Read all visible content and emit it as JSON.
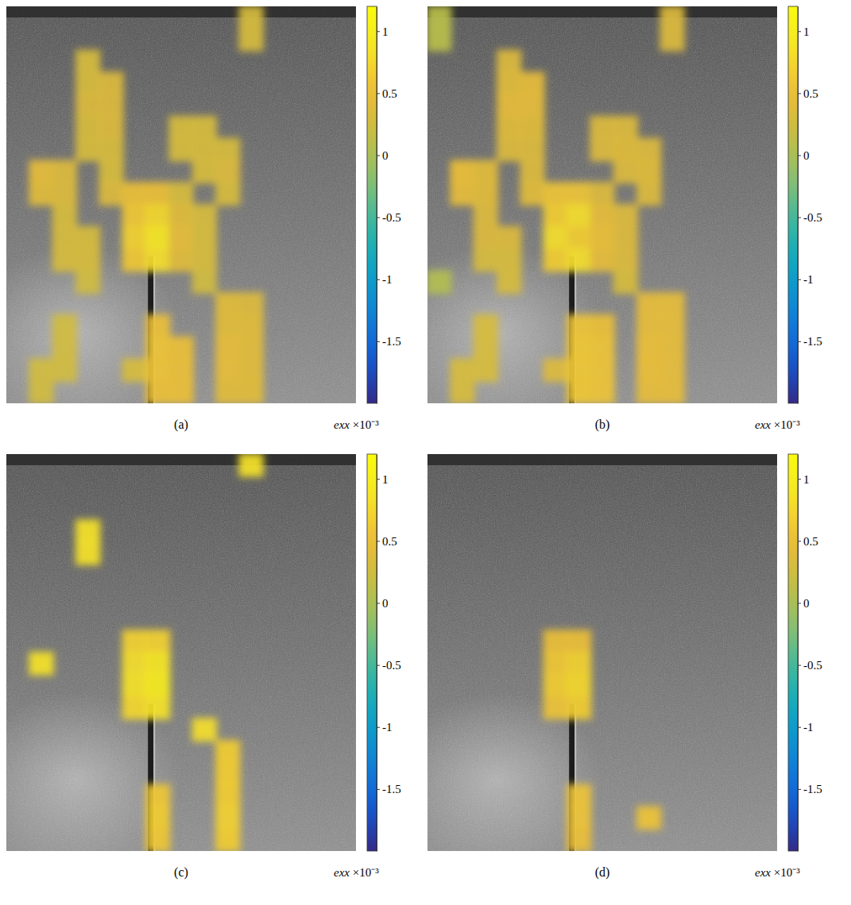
{
  "chart_data": [
    {
      "type": "heatmap",
      "label": "(a)",
      "colorbar_label": "exx ×10⁻³",
      "color_range": [
        -2,
        1.2
      ],
      "color_ticks": [
        1,
        0.5,
        0,
        -0.5,
        -1,
        -1.5
      ],
      "cells": [
        [
          null,
          null,
          null,
          null,
          null,
          null,
          null,
          null,
          null,
          null,
          0.3,
          null,
          null,
          null,
          null
        ],
        [
          null,
          null,
          null,
          null,
          null,
          null,
          null,
          null,
          null,
          null,
          0.3,
          null,
          null,
          null,
          null
        ],
        [
          null,
          null,
          null,
          0.3,
          null,
          null,
          null,
          null,
          null,
          null,
          null,
          null,
          null,
          null,
          null
        ],
        [
          null,
          null,
          null,
          0.3,
          0.35,
          null,
          null,
          null,
          null,
          null,
          null,
          null,
          null,
          null,
          null
        ],
        [
          null,
          null,
          null,
          0.35,
          0.35,
          null,
          null,
          null,
          null,
          null,
          null,
          null,
          null,
          null,
          null
        ],
        [
          null,
          null,
          null,
          0.3,
          0.35,
          null,
          null,
          0.3,
          0.3,
          null,
          null,
          null,
          null,
          null,
          null
        ],
        [
          null,
          null,
          null,
          0.3,
          0.3,
          null,
          null,
          0.3,
          0.3,
          0.3,
          null,
          null,
          null,
          null,
          null
        ],
        [
          null,
          0.45,
          0.35,
          null,
          0.3,
          null,
          null,
          null,
          0.3,
          0.35,
          null,
          null,
          null,
          null,
          null
        ],
        [
          null,
          0.4,
          0.35,
          null,
          0.35,
          0.5,
          0.5,
          0.3,
          null,
          0.3,
          null,
          null,
          null,
          null,
          null
        ],
        [
          null,
          null,
          0.3,
          null,
          null,
          0.6,
          0.75,
          0.4,
          0.3,
          null,
          null,
          null,
          null,
          null,
          null
        ],
        [
          null,
          null,
          0.3,
          0.3,
          null,
          0.7,
          0.9,
          0.45,
          0.3,
          null,
          null,
          null,
          null,
          null,
          null
        ],
        [
          null,
          null,
          0.3,
          0.3,
          null,
          0.6,
          0.8,
          0.4,
          0.3,
          null,
          null,
          null,
          null,
          null,
          null
        ],
        [
          null,
          null,
          null,
          0.25,
          null,
          null,
          null,
          null,
          0.25,
          null,
          null,
          null,
          null,
          null,
          null
        ],
        [
          null,
          null,
          null,
          null,
          null,
          null,
          null,
          null,
          null,
          0.4,
          0.35,
          null,
          null,
          null,
          null
        ],
        [
          null,
          null,
          0.25,
          null,
          null,
          null,
          0.5,
          null,
          null,
          0.4,
          0.4,
          null,
          null,
          null,
          null
        ],
        [
          null,
          null,
          0.25,
          null,
          null,
          null,
          0.55,
          0.5,
          null,
          0.45,
          0.4,
          null,
          null,
          null,
          null
        ],
        [
          null,
          0.25,
          0.25,
          null,
          null,
          0.3,
          0.55,
          0.5,
          null,
          0.45,
          0.4,
          null,
          null,
          null,
          null
        ],
        [
          null,
          0.25,
          null,
          null,
          null,
          null,
          0.5,
          0.5,
          null,
          0.4,
          0.4,
          null,
          null,
          null,
          null
        ]
      ]
    },
    {
      "type": "heatmap",
      "label": "(b)",
      "colorbar_label": "exx ×10⁻³",
      "color_range": [
        -2,
        1.2
      ],
      "color_ticks": [
        1,
        0.5,
        0,
        -0.5,
        -1,
        -1.5
      ],
      "cells": [
        [
          0.1,
          null,
          null,
          null,
          null,
          null,
          null,
          null,
          null,
          null,
          0.35,
          null,
          null,
          null,
          null
        ],
        [
          0.1,
          null,
          null,
          null,
          null,
          null,
          null,
          null,
          null,
          null,
          0.35,
          null,
          null,
          null,
          null
        ],
        [
          null,
          null,
          null,
          0.35,
          null,
          null,
          null,
          null,
          null,
          null,
          null,
          null,
          null,
          null,
          null
        ],
        [
          null,
          null,
          null,
          0.4,
          0.45,
          null,
          null,
          null,
          null,
          null,
          null,
          null,
          null,
          null,
          null
        ],
        [
          null,
          null,
          null,
          0.45,
          0.45,
          null,
          null,
          null,
          null,
          null,
          null,
          null,
          null,
          null,
          null
        ],
        [
          null,
          null,
          null,
          0.4,
          0.4,
          null,
          null,
          0.35,
          0.35,
          null,
          null,
          null,
          null,
          null,
          null
        ],
        [
          null,
          null,
          null,
          0.35,
          0.35,
          null,
          null,
          0.35,
          0.4,
          0.35,
          null,
          null,
          null,
          null,
          null
        ],
        [
          null,
          0.5,
          0.4,
          null,
          0.35,
          null,
          null,
          null,
          0.35,
          0.4,
          null,
          null,
          null,
          null,
          null
        ],
        [
          null,
          0.45,
          0.4,
          null,
          0.4,
          0.55,
          0.55,
          0.35,
          null,
          0.35,
          null,
          null,
          null,
          null,
          null
        ],
        [
          null,
          null,
          0.35,
          null,
          null,
          0.65,
          0.8,
          0.45,
          0.35,
          null,
          null,
          null,
          null,
          null,
          null
        ],
        [
          null,
          null,
          0.35,
          0.35,
          null,
          0.8,
          0.65,
          0.5,
          0.35,
          null,
          null,
          null,
          null,
          null,
          null
        ],
        [
          null,
          null,
          0.3,
          0.3,
          null,
          0.65,
          0.8,
          0.45,
          0.35,
          null,
          null,
          null,
          null,
          null,
          null
        ],
        [
          0.05,
          null,
          null,
          0.3,
          null,
          null,
          null,
          null,
          0.3,
          null,
          null,
          null,
          null,
          null,
          null
        ],
        [
          null,
          null,
          null,
          null,
          null,
          null,
          null,
          null,
          null,
          0.45,
          0.45,
          null,
          null,
          null,
          null
        ],
        [
          null,
          null,
          0.3,
          null,
          null,
          null,
          0.55,
          0.5,
          null,
          0.45,
          0.45,
          null,
          null,
          null,
          null
        ],
        [
          null,
          null,
          0.3,
          null,
          null,
          null,
          0.6,
          0.55,
          null,
          0.5,
          0.45,
          null,
          null,
          null,
          null
        ],
        [
          null,
          0.3,
          0.3,
          null,
          null,
          0.35,
          0.6,
          0.55,
          null,
          0.5,
          0.45,
          null,
          null,
          null,
          null
        ],
        [
          null,
          0.3,
          null,
          null,
          null,
          null,
          0.6,
          0.55,
          null,
          0.45,
          0.45,
          null,
          null,
          null,
          null
        ]
      ]
    },
    {
      "type": "heatmap",
      "label": "(c)",
      "colorbar_label": "exx ×10⁻³",
      "color_range": [
        -2,
        1.2
      ],
      "color_ticks": [
        1,
        0.5,
        0,
        -0.5,
        -1,
        -1.5
      ],
      "cells": [
        [
          null,
          null,
          null,
          null,
          null,
          null,
          null,
          null,
          null,
          null,
          0.85,
          null,
          null,
          null,
          null
        ],
        [
          null,
          null,
          null,
          null,
          null,
          null,
          null,
          null,
          null,
          null,
          null,
          null,
          null,
          null,
          null
        ],
        [
          null,
          null,
          null,
          null,
          null,
          null,
          null,
          null,
          null,
          null,
          null,
          null,
          null,
          null,
          null
        ],
        [
          null,
          null,
          null,
          0.85,
          null,
          null,
          null,
          null,
          null,
          null,
          null,
          null,
          null,
          null,
          null
        ],
        [
          null,
          null,
          null,
          0.85,
          null,
          null,
          null,
          null,
          null,
          null,
          null,
          null,
          null,
          null,
          null
        ],
        [
          null,
          null,
          null,
          null,
          null,
          null,
          null,
          null,
          null,
          null,
          null,
          null,
          null,
          null,
          null
        ],
        [
          null,
          null,
          null,
          null,
          null,
          null,
          null,
          null,
          null,
          null,
          null,
          null,
          null,
          null,
          null
        ],
        [
          null,
          null,
          null,
          null,
          null,
          null,
          null,
          null,
          null,
          null,
          null,
          null,
          null,
          null,
          null
        ],
        [
          null,
          null,
          null,
          null,
          null,
          0.7,
          0.7,
          null,
          null,
          null,
          null,
          null,
          null,
          null,
          null
        ],
        [
          null,
          0.85,
          null,
          null,
          null,
          0.8,
          0.9,
          null,
          null,
          null,
          null,
          null,
          null,
          null,
          null
        ],
        [
          null,
          null,
          null,
          null,
          null,
          0.85,
          0.95,
          null,
          null,
          null,
          null,
          null,
          null,
          null,
          null
        ],
        [
          null,
          null,
          null,
          null,
          null,
          0.75,
          0.85,
          null,
          null,
          null,
          null,
          null,
          null,
          null,
          null
        ],
        [
          null,
          null,
          null,
          null,
          null,
          null,
          null,
          null,
          0.8,
          null,
          null,
          null,
          null,
          null,
          null
        ],
        [
          null,
          null,
          null,
          null,
          null,
          null,
          null,
          null,
          null,
          0.65,
          null,
          null,
          null,
          null,
          null
        ],
        [
          null,
          null,
          null,
          null,
          null,
          null,
          null,
          null,
          null,
          0.65,
          null,
          null,
          null,
          null,
          null
        ],
        [
          null,
          null,
          null,
          null,
          null,
          null,
          0.6,
          null,
          null,
          0.65,
          null,
          null,
          null,
          null,
          null
        ],
        [
          null,
          null,
          null,
          null,
          null,
          null,
          0.65,
          null,
          null,
          0.7,
          null,
          null,
          null,
          null,
          null
        ],
        [
          null,
          null,
          null,
          null,
          null,
          null,
          0.6,
          null,
          null,
          0.65,
          null,
          null,
          null,
          null,
          null
        ]
      ]
    },
    {
      "type": "heatmap",
      "label": "(d)",
      "colorbar_label": "exx ×10⁻³",
      "color_range": [
        -2,
        1.2
      ],
      "color_ticks": [
        1,
        0.5,
        0,
        -0.5,
        -1,
        -1.5
      ],
      "cells": [
        [
          null,
          null,
          null,
          null,
          null,
          null,
          null,
          null,
          null,
          null,
          null,
          null,
          null,
          null,
          null
        ],
        [
          null,
          null,
          null,
          null,
          null,
          null,
          null,
          null,
          null,
          null,
          null,
          null,
          null,
          null,
          null
        ],
        [
          null,
          null,
          null,
          null,
          null,
          null,
          null,
          null,
          null,
          null,
          null,
          null,
          null,
          null,
          null
        ],
        [
          null,
          null,
          null,
          null,
          null,
          null,
          null,
          null,
          null,
          null,
          null,
          null,
          null,
          null,
          null
        ],
        [
          null,
          null,
          null,
          null,
          null,
          null,
          null,
          null,
          null,
          null,
          null,
          null,
          null,
          null,
          null
        ],
        [
          null,
          null,
          null,
          null,
          null,
          null,
          null,
          null,
          null,
          null,
          null,
          null,
          null,
          null,
          null
        ],
        [
          null,
          null,
          null,
          null,
          null,
          null,
          null,
          null,
          null,
          null,
          null,
          null,
          null,
          null,
          null
        ],
        [
          null,
          null,
          null,
          null,
          null,
          null,
          null,
          null,
          null,
          null,
          null,
          null,
          null,
          null,
          null
        ],
        [
          null,
          null,
          null,
          null,
          null,
          0.5,
          0.5,
          null,
          null,
          null,
          null,
          null,
          null,
          null,
          null
        ],
        [
          null,
          null,
          null,
          null,
          null,
          0.6,
          0.7,
          null,
          null,
          null,
          null,
          null,
          null,
          null,
          null
        ],
        [
          null,
          null,
          null,
          null,
          null,
          0.65,
          0.75,
          null,
          null,
          null,
          null,
          null,
          null,
          null,
          null
        ],
        [
          null,
          null,
          null,
          null,
          null,
          0.55,
          0.65,
          null,
          null,
          null,
          null,
          null,
          null,
          null,
          null
        ],
        [
          null,
          null,
          null,
          null,
          null,
          null,
          null,
          null,
          null,
          null,
          null,
          null,
          null,
          null,
          null
        ],
        [
          null,
          null,
          null,
          null,
          null,
          null,
          null,
          null,
          null,
          null,
          null,
          null,
          null,
          null,
          null
        ],
        [
          null,
          null,
          null,
          null,
          null,
          null,
          null,
          null,
          null,
          null,
          null,
          null,
          null,
          null,
          null
        ],
        [
          null,
          null,
          null,
          null,
          null,
          null,
          0.55,
          null,
          null,
          null,
          null,
          null,
          null,
          null,
          null
        ],
        [
          null,
          null,
          null,
          null,
          null,
          null,
          0.55,
          null,
          null,
          0.55,
          null,
          null,
          null,
          null,
          null
        ],
        [
          null,
          null,
          null,
          null,
          null,
          null,
          0.5,
          null,
          null,
          null,
          null,
          null,
          null,
          null,
          null
        ]
      ]
    }
  ]
}
